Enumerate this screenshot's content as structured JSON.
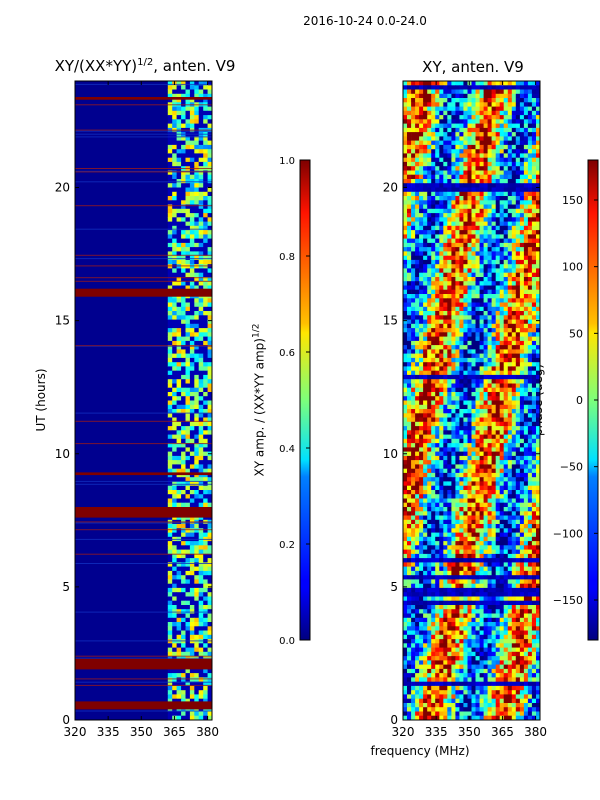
{
  "chart_data": {
    "suptitle": "2016-10-24 0.0-24.0",
    "xlabel": "frequency (MHz)",
    "ylabel": "UT (hours)",
    "panels": [
      {
        "type": "heatmap",
        "title": "XY/(XX*YY)",
        "title_exponent": "1/2",
        "title_suffix": ", anten. V9",
        "xlim": [
          320,
          382
        ],
        "ylim": [
          0,
          24
        ],
        "xticks": [
          320,
          335,
          350,
          365,
          380
        ],
        "yticks": [
          0,
          5,
          10,
          15,
          20
        ],
        "colorbar": {
          "label": "XY amp. / (XX*YY amp)",
          "label_exponent": "1/2",
          "range": [
            0.0,
            1.0
          ],
          "ticks": [
            "0.0",
            "0.2",
            "0.4",
            "0.6",
            "0.8",
            "1.0"
          ]
        },
        "flagged_bands_ut_hours": [
          [
            0.4,
            0.7
          ],
          [
            1.9,
            2.3
          ],
          [
            7.6,
            8.0
          ],
          [
            9.2,
            9.3
          ],
          [
            15.9,
            16.2
          ],
          [
            23.3,
            23.4
          ]
        ],
        "signal_band_mhz": [
          362,
          382
        ]
      },
      {
        "type": "heatmap",
        "title": "XY, anten. V9",
        "xlim": [
          320,
          382
        ],
        "ylim": [
          0,
          24
        ],
        "xticks": [
          320,
          335,
          350,
          365,
          380
        ],
        "yticks": [
          0,
          5,
          10,
          15,
          20
        ],
        "colorbar": {
          "label": "phase (deg)",
          "range": [
            -180,
            180
          ],
          "ticks": [
            "−150",
            "−100",
            "−50",
            "0",
            "50",
            "100",
            "150"
          ]
        }
      }
    ]
  }
}
